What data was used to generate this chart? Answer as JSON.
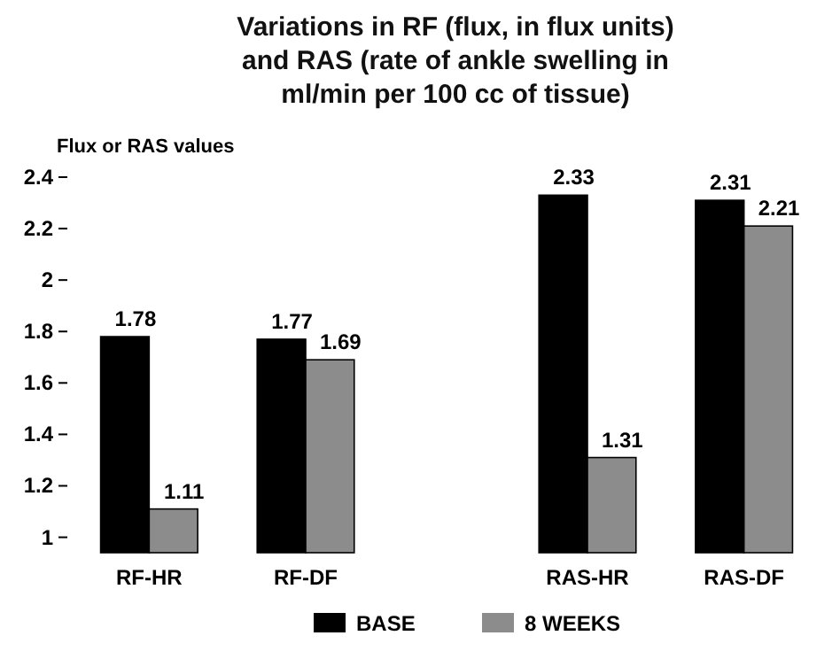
{
  "chart_data": {
    "type": "bar",
    "title": "Variations in RF (flux, in flux units) and RAS (rate of ankle swelling in ml/min per 100 cc of tissue)",
    "ylabel": "Flux or RAS values",
    "categories": [
      "RF-HR",
      "RF-DF",
      "RAS-HR",
      "RAS-DF"
    ],
    "series": [
      {
        "name": "BASE",
        "color": "#000000",
        "values": [
          1.78,
          1.77,
          2.33,
          2.31
        ]
      },
      {
        "name": "8 WEEKS",
        "color": "#8c8c8c",
        "values": [
          1.11,
          1.69,
          1.31,
          2.21
        ]
      }
    ],
    "ylim": [
      0.94,
      2.4
    ],
    "yticks": [
      1,
      1.2,
      1.4,
      1.6,
      1.8,
      2,
      2.2,
      2.4
    ],
    "data_labels": true,
    "legend": "bottom",
    "grid": false
  }
}
